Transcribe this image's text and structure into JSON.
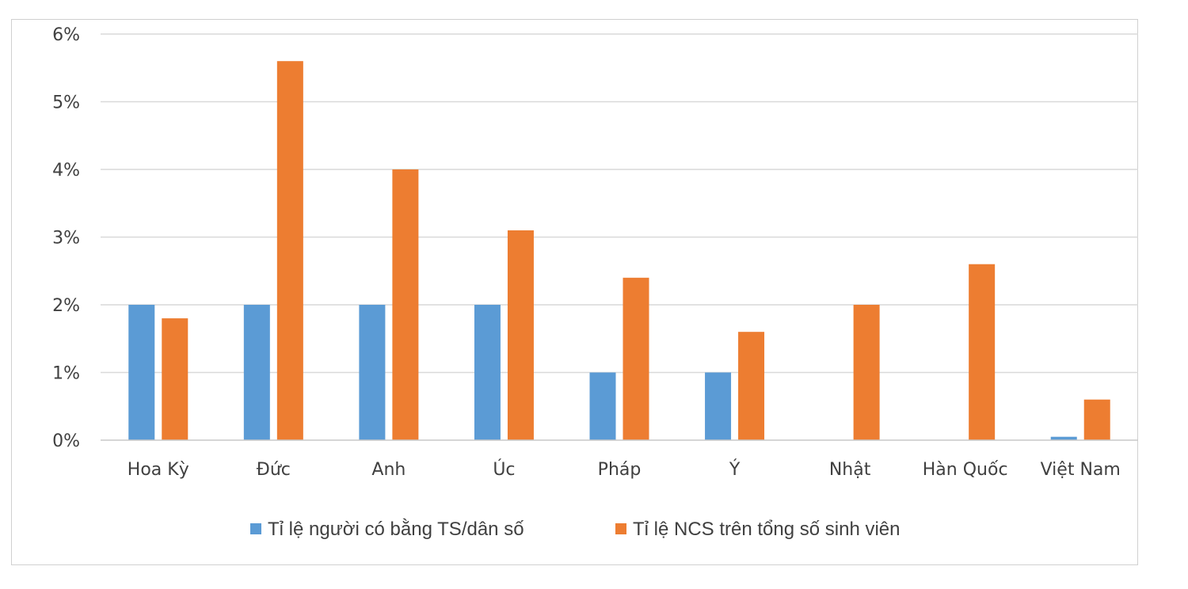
{
  "chart_data": {
    "type": "bar",
    "title": "",
    "xlabel": "",
    "ylabel": "",
    "categories": [
      "Hoa Kỳ",
      "Đức",
      "Anh",
      "Úc",
      "Pháp",
      "Ý",
      "Nhật",
      "Hàn Quốc",
      "Việt Nam"
    ],
    "series": [
      {
        "name": "Tỉ lệ người có bằng TS/dân số",
        "color": "#5B9BD5",
        "values": [
          2.0,
          2.0,
          2.0,
          2.0,
          1.0,
          1.0,
          null,
          null,
          0.05
        ]
      },
      {
        "name": "Tỉ lệ NCS trên tổng số sinh viên",
        "color": "#ED7D31",
        "values": [
          1.8,
          5.6,
          4.0,
          3.1,
          2.4,
          1.6,
          2.0,
          2.6,
          0.6
        ]
      }
    ],
    "ylim": [
      0,
      6
    ],
    "yticks": [
      "0%",
      "1%",
      "2%",
      "3%",
      "4%",
      "5%",
      "6%"
    ],
    "grid": true,
    "legend_position": "bottom"
  }
}
